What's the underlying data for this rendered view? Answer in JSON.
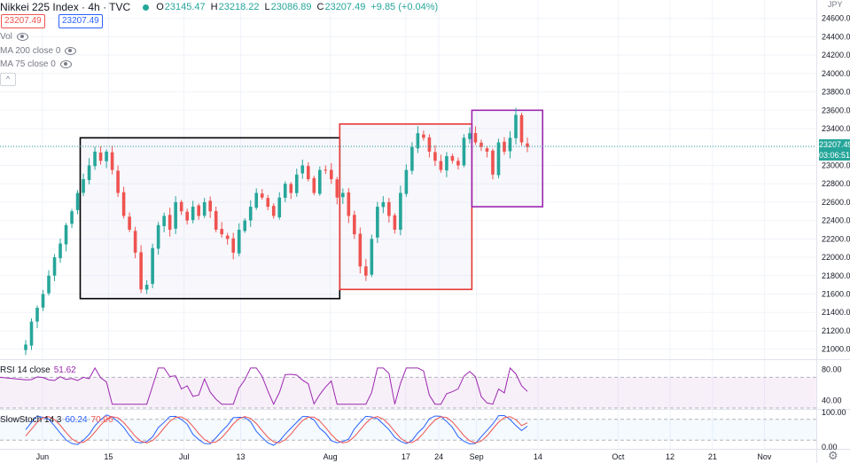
{
  "header": {
    "title": "Nikkei 225 Index · 4h · TVC",
    "o_label": "O",
    "o_value": "23145.47",
    "h_label": "H",
    "h_value": "23218.22",
    "l_label": "L",
    "l_value": "23086.89",
    "c_label": "C",
    "c_value": "23207.49",
    "change": "+9.85 (+0.04%)",
    "bid": "23207.49",
    "ask": "23207.49",
    "currency": "JPY"
  },
  "indicators": {
    "vol": "Vol",
    "ma200": "MA 200 close 0",
    "ma75": "MA 75 close 0",
    "collapse": "^"
  },
  "rsi": {
    "label": "RSI 14 close",
    "value": "51.62"
  },
  "stoch": {
    "label": "SlowStoch 14 3",
    "k": "60.24",
    "d": "70.06"
  },
  "last_price": "23207.49",
  "countdown": "03:06:51",
  "colors": {
    "up": "#26a69a",
    "down": "#ef5350",
    "rsi": "#9c27b0",
    "box_black": "#000000",
    "box_red": "#e53935",
    "box_purple": "#9c27b0"
  },
  "chart_data": {
    "type": "candlestick",
    "title": "Nikkei 225 Index, 4h, TVC",
    "ylim": [
      20900,
      24800
    ],
    "y_ticks": [
      21000,
      21200,
      21400,
      21600,
      21800,
      22000,
      22200,
      22400,
      22600,
      22800,
      23000,
      23200,
      23400,
      23600,
      23800,
      24000,
      24200,
      24400,
      24600
    ],
    "y_tick_labels": [
      "21000.00",
      "21200.00",
      "21400.00",
      "21600.00",
      "21800.00",
      "22000.00",
      "22200.00",
      "22400.00",
      "22600.00",
      "22800.00",
      "23000.00",
      "23200.00",
      "23400.00",
      "23600.00",
      "23800.00",
      "24000.00",
      "24200.00",
      "24400.00",
      "24600.00"
    ],
    "x_ticks": [
      {
        "label": "Jun",
        "date": "2020-06-01"
      },
      {
        "label": "15",
        "date": "2020-06-15"
      },
      {
        "label": "Jul",
        "date": "2020-07-01"
      },
      {
        "label": "13",
        "date": "2020-07-13"
      },
      {
        "label": "Aug",
        "date": "2020-08-01"
      },
      {
        "label": "17",
        "date": "2020-08-17"
      },
      {
        "label": "24",
        "date": "2020-08-24"
      },
      {
        "label": "Sep",
        "date": "2020-09-01"
      },
      {
        "label": "14",
        "date": "2020-09-14"
      },
      {
        "label": "Oct",
        "date": "2020-10-01"
      },
      {
        "label": "12",
        "date": "2020-10-12"
      },
      {
        "label": "21",
        "date": "2020-10-21"
      },
      {
        "label": "Nov",
        "date": "2020-11-01"
      }
    ],
    "closes": [
      21050,
      21300,
      21450,
      21600,
      21800,
      22000,
      22150,
      22350,
      22500,
      22700,
      22850,
      23000,
      23150,
      23050,
      23150,
      22950,
      22700,
      22450,
      22300,
      22050,
      21650,
      21700,
      22100,
      22350,
      22450,
      22300,
      22600,
      22500,
      22400,
      22550,
      22450,
      22600,
      22500,
      22300,
      22250,
      22200,
      22050,
      22300,
      22400,
      22550,
      22700,
      22650,
      22550,
      22450,
      22650,
      22800,
      22700,
      22900,
      23000,
      22850,
      22700,
      22950,
      22950,
      22850,
      22650,
      22700,
      22450,
      22250,
      21900,
      21800,
      22200,
      22550,
      22600,
      22450,
      22300,
      22700,
      22950,
      23200,
      23350,
      23300,
      23150,
      23050,
      22950,
      23100,
      23050,
      23000,
      23300,
      23350,
      23250,
      23200,
      23150,
      22900,
      23250,
      23150,
      23300,
      23550,
      23250,
      23200
    ],
    "selected_close": 23207.49,
    "rsi_pane": {
      "ylim": [
        30,
        90
      ],
      "ticks": [
        40,
        80
      ],
      "tick_labels": [
        "40.00",
        "80.00"
      ],
      "band": [
        30,
        70
      ],
      "last": 51.62
    },
    "stoch_pane": {
      "ylim": [
        0,
        100
      ],
      "ticks": [
        0,
        100
      ],
      "tick_labels": [
        "0.00",
        "100.00"
      ],
      "band": [
        20,
        80
      ],
      "k_last": 60.24,
      "d_last": 70.06
    },
    "boxes": [
      {
        "name": "box-range-1",
        "color": "black",
        "x_from": "2020-06-09",
        "x_to": "2020-08-03",
        "y_from": 21550,
        "y_to": 23300
      },
      {
        "name": "box-range-2",
        "color": "red",
        "x_from": "2020-08-03",
        "x_to": "2020-08-31",
        "y_from": 21650,
        "y_to": 23450
      },
      {
        "name": "box-range-3",
        "color": "purple",
        "x_from": "2020-08-31",
        "x_to": "2020-09-15",
        "y_from": 22550,
        "y_to": 23600
      }
    ]
  }
}
